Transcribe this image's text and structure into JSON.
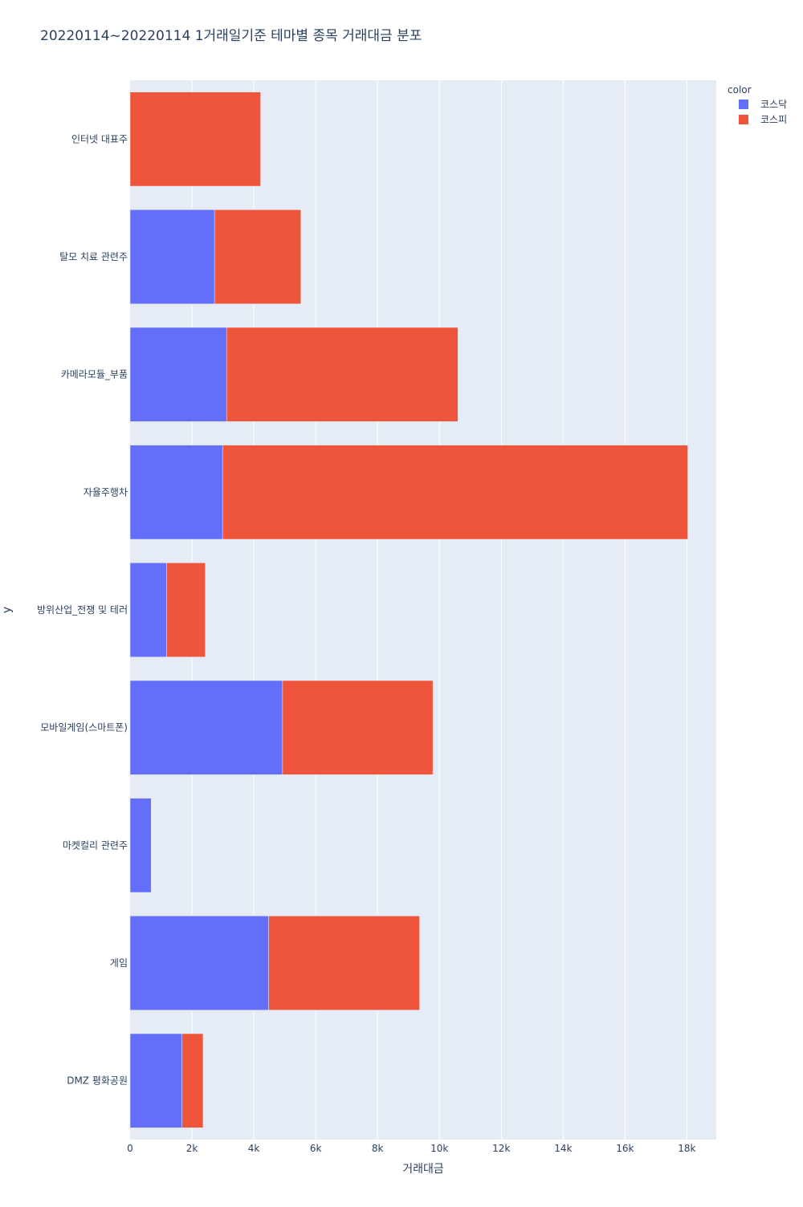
{
  "chart_data": {
    "type": "bar",
    "orientation": "horizontal",
    "barmode": "stack",
    "title": "20220114~20220114 1거래일기준 테마별 종목 거래대금 분포",
    "xlabel": "거래대금",
    "ylabel": "y",
    "xlim": [
      0,
      18950
    ],
    "x_ticks": [
      0,
      2000,
      4000,
      6000,
      8000,
      10000,
      12000,
      14000,
      16000,
      18000
    ],
    "x_tick_labels": [
      "0",
      "2k",
      "4k",
      "6k",
      "8k",
      "10k",
      "12k",
      "14k",
      "16k",
      "18k"
    ],
    "grid": true,
    "legend_title": "color",
    "legend_position": "top-right",
    "categories": [
      "인터넷 대표주",
      "탈모 치료 관련주",
      "카메라모듈_부품",
      "자율주행차",
      "방위산업_전쟁 및 테러",
      "모바일게임(스마트폰)",
      "마켓컬리 관련주",
      "게임",
      "DMZ 평화공원"
    ],
    "series": [
      {
        "name": "코스닥",
        "color": "#636efa",
        "values": [
          0,
          2730,
          3120,
          2990,
          1180,
          4930,
          680,
          4480,
          1680
        ]
      },
      {
        "name": "코스피",
        "color": "#ef553b",
        "values": [
          4220,
          2790,
          7480,
          15040,
          1250,
          4860,
          0,
          4880,
          680
        ]
      }
    ]
  }
}
